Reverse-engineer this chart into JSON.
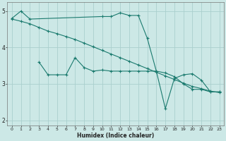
{
  "xlabel": "Humidex (Indice chaleur)",
  "bg_color": "#cce8e6",
  "grid_color": "#aacfcd",
  "line_color": "#1a7a6e",
  "xlim": [
    -0.5,
    23.5
  ],
  "ylim": [
    1.85,
    5.25
  ],
  "yticks": [
    2,
    3,
    4,
    5
  ],
  "xticks": [
    0,
    1,
    2,
    3,
    4,
    5,
    6,
    7,
    8,
    9,
    10,
    11,
    12,
    13,
    14,
    15,
    16,
    17,
    18,
    19,
    20,
    21,
    22,
    23
  ],
  "series1_x": [
    0,
    1,
    2,
    10,
    11,
    12,
    13,
    14,
    15,
    16,
    17,
    18,
    19,
    20,
    21,
    22,
    23
  ],
  "series1_y": [
    4.8,
    5.0,
    4.78,
    4.85,
    4.85,
    4.95,
    4.88,
    4.88,
    4.25,
    3.35,
    3.3,
    3.2,
    3.0,
    2.85,
    2.85,
    2.78,
    2.78
  ],
  "series2_x": [
    0,
    1,
    2,
    3,
    4,
    5,
    6,
    7,
    8,
    9,
    10,
    11,
    12,
    13,
    14,
    15,
    16,
    17,
    18,
    19,
    20,
    21,
    22,
    23
  ],
  "series2_y": [
    4.78,
    4.72,
    4.65,
    4.55,
    4.45,
    4.38,
    4.3,
    4.22,
    4.12,
    4.02,
    3.92,
    3.82,
    3.72,
    3.62,
    3.52,
    3.42,
    3.32,
    3.22,
    3.12,
    3.02,
    2.93,
    2.87,
    2.8,
    2.76
  ],
  "series3_x": [
    3,
    4,
    5,
    6,
    7,
    8,
    9,
    10,
    11,
    12,
    13,
    14,
    15,
    16,
    17,
    18,
    19,
    20,
    21,
    22,
    23
  ],
  "series3_y": [
    3.6,
    3.25,
    3.25,
    3.25,
    3.72,
    3.45,
    3.35,
    3.38,
    3.35,
    3.35,
    3.35,
    3.35,
    3.35,
    3.35,
    2.32,
    3.15,
    3.25,
    3.28,
    3.1,
    2.78,
    2.78
  ]
}
